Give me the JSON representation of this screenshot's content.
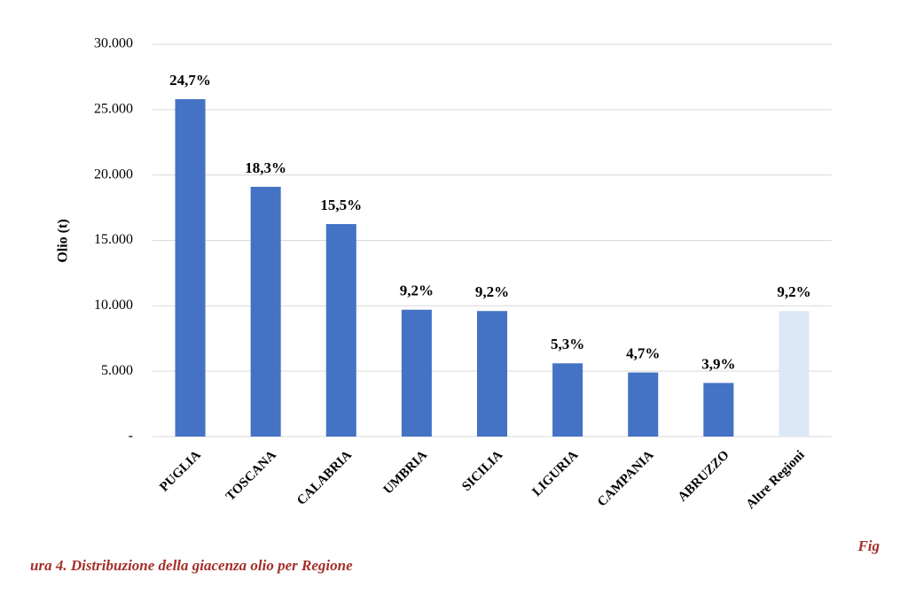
{
  "chart_data": {
    "type": "bar",
    "y_label": "Olio (t)",
    "categories": [
      "PUGLIA",
      "TOSCANA",
      "CALABRIA",
      "UMBRIA",
      "SICILIA",
      "LIGURIA",
      "CAMPANIA",
      "ABRUZZO",
      "Altre Regioni"
    ],
    "values": [
      25800,
      19100,
      16250,
      9700,
      9600,
      5600,
      4900,
      4100,
      9600
    ],
    "data_labels": [
      "24,7%",
      "18,3%",
      "15,5%",
      "9,2%",
      "9,2%",
      "5,3%",
      "4,7%",
      "3,9%",
      "9,2%"
    ],
    "colors": [
      "#4472c4",
      "#4472c4",
      "#4472c4",
      "#4472c4",
      "#4472c4",
      "#4472c4",
      "#4472c4",
      "#4472c4",
      "#dde8f5"
    ],
    "ylim": [
      0,
      30000
    ],
    "yticks": [
      {
        "value": 0,
        "label": "-"
      },
      {
        "value": 5000,
        "label": "5.000"
      },
      {
        "value": 10000,
        "label": "10.000"
      },
      {
        "value": 15000,
        "label": "15.000"
      },
      {
        "value": 20000,
        "label": "20.000"
      },
      {
        "value": 25000,
        "label": "25.000"
      },
      {
        "value": 30000,
        "label": "30.000"
      }
    ],
    "grid": true,
    "caption": [
      "Fig",
      "ura 4. Distribuzione della giacenza olio per Regione"
    ]
  }
}
